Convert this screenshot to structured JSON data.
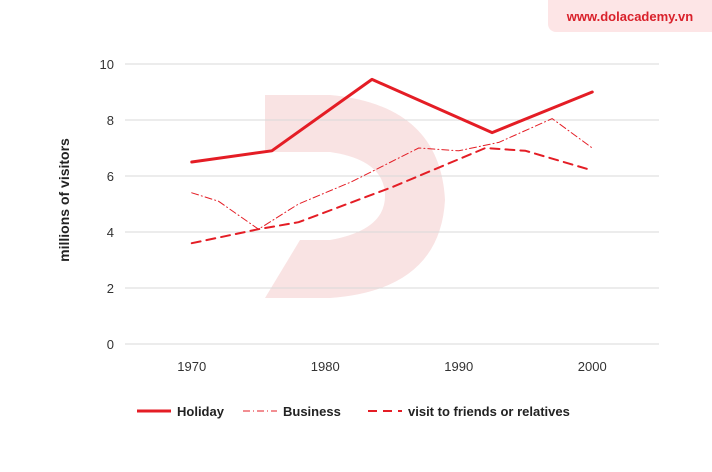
{
  "brand": {
    "url_text": "www.dolacademy.vn"
  },
  "colors": {
    "series": "#e41d25",
    "grid": "#d9d9d9",
    "watermark": "#f9e3e3",
    "badge_bg": "#fde5e6"
  },
  "chart_data": {
    "type": "line",
    "ylabel": "millions of visitors",
    "xlabel": "",
    "x_ticks": [
      1970,
      1980,
      1990,
      2000
    ],
    "y_ticks": [
      0,
      2,
      4,
      6,
      8,
      10
    ],
    "xlim": [
      1965,
      2005
    ],
    "ylim": [
      0,
      10
    ],
    "grid": "horizontal",
    "legend_position": "bottom",
    "series": [
      {
        "name": "Holiday",
        "style": "solid",
        "points": [
          [
            1970,
            6.5
          ],
          [
            1976,
            6.9
          ],
          [
            1983.5,
            9.45
          ],
          [
            1992.5,
            7.55
          ],
          [
            2000,
            9.0
          ]
        ]
      },
      {
        "name": "Business",
        "style": "dashdot",
        "points": [
          [
            1970,
            5.4
          ],
          [
            1972,
            5.1
          ],
          [
            1975,
            4.1
          ],
          [
            1978,
            5.0
          ],
          [
            1982,
            5.8
          ],
          [
            1987,
            7.0
          ],
          [
            1990,
            6.9
          ],
          [
            1993,
            7.2
          ],
          [
            1997,
            8.05
          ],
          [
            2000,
            7.0
          ]
        ]
      },
      {
        "name": "visit to friends or relatives",
        "style": "dashed",
        "points": [
          [
            1970,
            3.6
          ],
          [
            1975,
            4.1
          ],
          [
            1978,
            4.35
          ],
          [
            1985,
            5.6
          ],
          [
            1992,
            7.0
          ],
          [
            1995,
            6.9
          ],
          [
            2000,
            6.2
          ]
        ]
      }
    ]
  }
}
